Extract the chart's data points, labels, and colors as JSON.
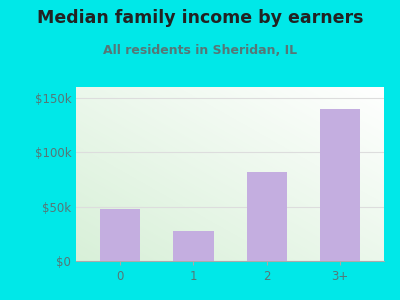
{
  "title": "Median family income by earners",
  "subtitle": "All residents in Sheridan, IL",
  "categories": [
    "0",
    "1",
    "2",
    "3+"
  ],
  "values": [
    48000,
    28000,
    82000,
    140000
  ],
  "bar_color": "#c4aee0",
  "ylim": [
    0,
    160000
  ],
  "yticks": [
    0,
    50000,
    100000,
    150000
  ],
  "ytick_labels": [
    "$0",
    "$50k",
    "$100k",
    "$150k"
  ],
  "outer_bg": "#00e8e8",
  "plot_bg_top_left": "#d8f0d8",
  "plot_bg_bottom_right": "#ffffff",
  "title_color": "#222222",
  "subtitle_color": "#557777",
  "tick_color": "#557777",
  "title_fontsize": 12.5,
  "subtitle_fontsize": 9,
  "tick_fontsize": 8.5,
  "grid_color": "#dddddd",
  "spine_color": "#aaaaaa"
}
